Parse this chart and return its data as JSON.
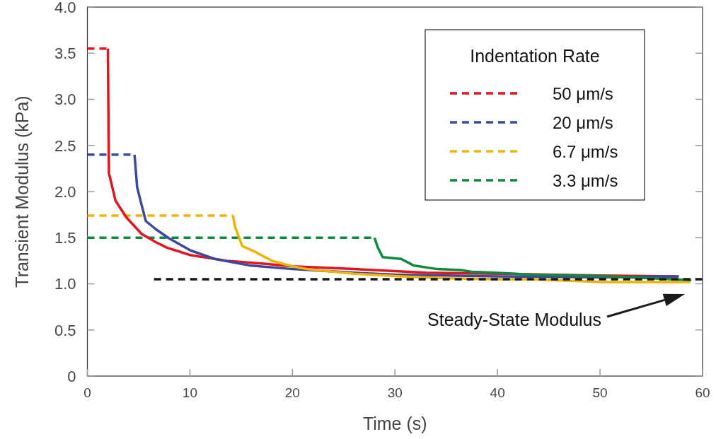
{
  "chart_data": {
    "type": "line",
    "xlabel": "Time (s)",
    "ylabel": "Transient Modulus (kPa)",
    "legend_title": "Indentation Rate",
    "xlim": [
      0,
      60
    ],
    "xticks": [
      0,
      10,
      20,
      30,
      40,
      50,
      60
    ],
    "ylim": [
      0,
      4
    ],
    "yticks": [
      0,
      0.5,
      {
        "value": 1,
        "label": "1.0"
      },
      1.5,
      {
        "value": 2,
        "label": "2.0"
      },
      2.5,
      {
        "value": 3,
        "label": "3.0"
      },
      3.5,
      {
        "value": 4,
        "label": "4.0"
      }
    ],
    "grid": false,
    "legend": "top right",
    "series": [
      {
        "name": "50 μm/s",
        "color": "#e3141d",
        "line_style": "dashed",
        "x": [
          0,
          2.0
        ],
        "values": [
          3.55,
          3.55
        ]
      },
      {
        "name": "20 μm/s",
        "color": "#3b4a9c",
        "line_style": "dashed",
        "x": [
          0,
          4.6
        ],
        "values": [
          2.4,
          2.4
        ]
      },
      {
        "name": "6.7 μm/s",
        "color": "#f0b400",
        "line_style": "dashed",
        "x": [
          0,
          14.2
        ],
        "values": [
          1.74,
          1.74
        ]
      },
      {
        "name": "3.3 μm/s",
        "color": "#0e8a3c",
        "line_style": "dashed",
        "x": [
          0,
          28.0
        ],
        "values": [
          1.5,
          1.5
        ]
      },
      {
        "color": "#e3141d",
        "line_style": "solid",
        "x": [
          2.0,
          2.1,
          2.75,
          3.8,
          5.3,
          6.7,
          7.8,
          10.1,
          13.6,
          17,
          20,
          26,
          33,
          40,
          50,
          57.5
        ],
        "values": [
          3.55,
          2.2,
          1.9,
          1.72,
          1.54,
          1.45,
          1.39,
          1.31,
          1.25,
          1.22,
          1.19,
          1.16,
          1.12,
          1.11,
          1.09,
          1.08
        ]
      },
      {
        "color": "#3b4a9c",
        "line_style": "solid",
        "x": [
          4.6,
          4.85,
          5.3,
          5.7,
          6.7,
          8.0,
          10.1,
          12.4,
          15.8,
          20,
          26,
          30,
          40,
          50,
          57.7
        ],
        "values": [
          2.4,
          2.05,
          1.85,
          1.68,
          1.59,
          1.49,
          1.36,
          1.27,
          1.2,
          1.16,
          1.12,
          1.1,
          1.08,
          1.07,
          1.08
        ]
      },
      {
        "color": "#f0b400",
        "line_style": "solid",
        "x": [
          14.2,
          14.4,
          15.1,
          16.3,
          18.0,
          20,
          21.4,
          26,
          30.6,
          35.2,
          39.8,
          43.3,
          50.2,
          58.8
        ],
        "values": [
          1.74,
          1.62,
          1.41,
          1.35,
          1.25,
          1.19,
          1.16,
          1.11,
          1.08,
          1.06,
          1.05,
          1.05,
          1.02,
          1.02
        ]
      },
      {
        "color": "#0e8a3c",
        "line_style": "solid",
        "x": [
          28.0,
          28.3,
          28.8,
          30.6,
          31.8,
          34.1,
          36.4,
          37.5,
          39.8,
          43.3,
          50.2,
          58.9
        ],
        "values": [
          1.5,
          1.4,
          1.29,
          1.27,
          1.2,
          1.16,
          1.15,
          1.13,
          1.12,
          1.1,
          1.085,
          1.04
        ]
      },
      {
        "color": "#1a1a1a",
        "line_style": "dashed",
        "x": [
          6.5,
          60
        ],
        "values": [
          1.05,
          1.05
        ]
      }
    ],
    "annotations": [
      "Steady-State Modulus"
    ]
  }
}
